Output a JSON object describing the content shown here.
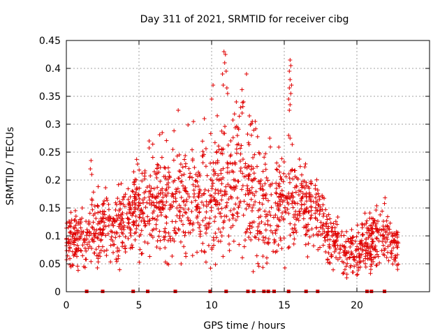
{
  "chart_data": {
    "type": "scatter",
    "title": "Day 311 of 2021, SRMTID for receiver cibg",
    "xlabel": "GPS time / hours",
    "ylabel": "SRMTID / TECUs",
    "xlim": [
      0,
      25
    ],
    "ylim": [
      0,
      0.45
    ],
    "xticks": [
      0,
      5,
      10,
      15,
      20
    ],
    "yticks": [
      0,
      0.05,
      0.1,
      0.15,
      0.2,
      0.25,
      0.3,
      0.35,
      0.4,
      0.45
    ],
    "xtick_labels": [
      "0",
      "5",
      "10",
      "15",
      "20"
    ],
    "ytick_labels": [
      "0",
      "0.05",
      "0.1",
      "0.15",
      "0.2",
      "0.25",
      "0.3",
      "0.35",
      "0.4",
      "0.45"
    ],
    "grid": true,
    "marker": "+",
    "color": "#e00000",
    "zero_markers_x": [
      1.4,
      2.5,
      4.6,
      5.6,
      7.5,
      9.9,
      11.0,
      12.5,
      12.9,
      13.6,
      13.9,
      14.3,
      15.3,
      16.5,
      17.3,
      20.7,
      21.0,
      21.9
    ],
    "envelope": {
      "x": [
        0,
        1,
        2,
        3,
        4,
        5,
        6,
        7,
        8,
        9,
        10,
        11,
        12,
        13,
        14,
        15,
        16,
        17,
        18,
        19,
        20,
        21,
        22,
        22.8
      ],
      "mean": [
        0.095,
        0.1,
        0.105,
        0.11,
        0.125,
        0.145,
        0.165,
        0.165,
        0.16,
        0.165,
        0.17,
        0.195,
        0.205,
        0.17,
        0.15,
        0.16,
        0.165,
        0.15,
        0.1,
        0.08,
        0.07,
        0.09,
        0.095,
        0.08
      ],
      "spread": [
        0.025,
        0.03,
        0.035,
        0.035,
        0.04,
        0.045,
        0.05,
        0.055,
        0.06,
        0.06,
        0.065,
        0.07,
        0.07,
        0.065,
        0.055,
        0.05,
        0.045,
        0.04,
        0.03,
        0.025,
        0.025,
        0.03,
        0.03,
        0.025
      ]
    },
    "outliers": [
      {
        "x": 10.85,
        "y": 0.43
      },
      {
        "x": 10.95,
        "y": 0.425
      },
      {
        "x": 10.9,
        "y": 0.41
      },
      {
        "x": 10.75,
        "y": 0.39
      },
      {
        "x": 11.0,
        "y": 0.395
      },
      {
        "x": 10.8,
        "y": 0.37
      },
      {
        "x": 11.05,
        "y": 0.365
      },
      {
        "x": 10.1,
        "y": 0.37
      },
      {
        "x": 12.4,
        "y": 0.39
      },
      {
        "x": 12.2,
        "y": 0.34
      },
      {
        "x": 11.1,
        "y": 0.355
      },
      {
        "x": 10.0,
        "y": 0.345
      },
      {
        "x": 15.4,
        "y": 0.415
      },
      {
        "x": 15.45,
        "y": 0.405
      },
      {
        "x": 15.35,
        "y": 0.395
      },
      {
        "x": 15.4,
        "y": 0.38
      },
      {
        "x": 15.5,
        "y": 0.37
      },
      {
        "x": 15.35,
        "y": 0.365
      },
      {
        "x": 15.45,
        "y": 0.355
      },
      {
        "x": 15.3,
        "y": 0.345
      },
      {
        "x": 15.4,
        "y": 0.335
      },
      {
        "x": 15.35,
        "y": 0.325
      },
      {
        "x": 12.6,
        "y": 0.315
      },
      {
        "x": 12.8,
        "y": 0.305
      },
      {
        "x": 13.0,
        "y": 0.305
      },
      {
        "x": 7.7,
        "y": 0.325
      },
      {
        "x": 9.5,
        "y": 0.31
      },
      {
        "x": 12.0,
        "y": 0.33
      },
      {
        "x": 11.7,
        "y": 0.34
      },
      {
        "x": 12.1,
        "y": 0.32
      },
      {
        "x": 1.7,
        "y": 0.235
      },
      {
        "x": 1.65,
        "y": 0.22
      },
      {
        "x": 1.75,
        "y": 0.21
      },
      {
        "x": 6.6,
        "y": 0.285
      },
      {
        "x": 5.7,
        "y": 0.27
      },
      {
        "x": 15.3,
        "y": 0.28
      },
      {
        "x": 15.4,
        "y": 0.275
      },
      {
        "x": 14.0,
        "y": 0.275
      },
      {
        "x": 21.9,
        "y": 0.158
      },
      {
        "x": 19.3,
        "y": 0.025
      },
      {
        "x": 20.0,
        "y": 0.03
      },
      {
        "x": 19.7,
        "y": 0.035
      },
      {
        "x": 7.9,
        "y": 0.05
      },
      {
        "x": 1.2,
        "y": 0.045
      },
      {
        "x": 22.8,
        "y": 0.04
      }
    ],
    "n_points": 1700,
    "x_end": 22.85
  }
}
